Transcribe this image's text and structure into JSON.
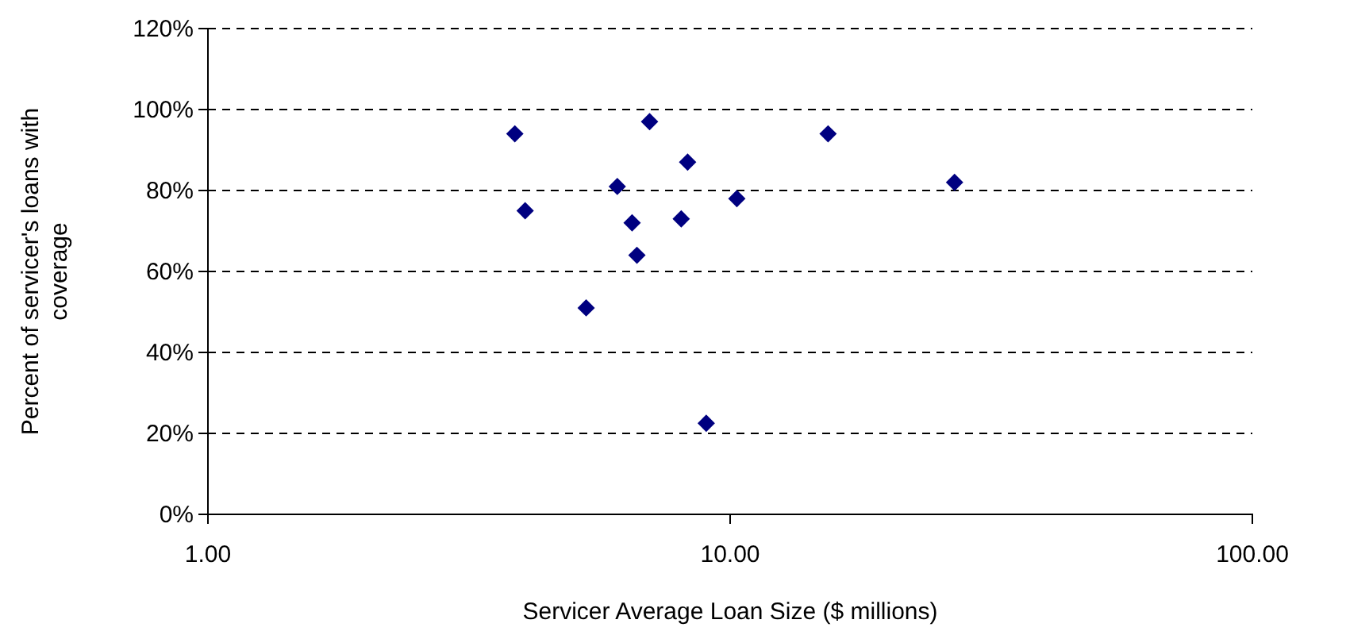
{
  "chart_data": {
    "type": "scatter",
    "xlabel": "Servicer Average Loan Size ($ millions)",
    "ylabel": "Percent of servicer's loans with coverage",
    "x": [
      3.87,
      4.05,
      7.01,
      8.29,
      6.08,
      6.49,
      6.63,
      5.3,
      8.06,
      10.3,
      9.0,
      15.4,
      26.9
    ],
    "series": [
      {
        "color": "#000080",
        "values": [
          94,
          75,
          97,
          87,
          81,
          72,
          64,
          51,
          73,
          78,
          22.5,
          94,
          82
        ]
      }
    ],
    "log": "x",
    "marker": "diamond",
    "grid": "y",
    "xlim": [
      1,
      100
    ],
    "xticks": [
      {
        "value": 1,
        "label": "1.00"
      },
      {
        "value": 10,
        "label": "10.00"
      },
      {
        "value": 100,
        "label": "100.00"
      }
    ],
    "ylim": [
      0,
      120
    ],
    "yticks": [
      {
        "value": 0,
        "label": "0%"
      },
      {
        "value": 20,
        "label": "20%"
      },
      {
        "value": 40,
        "label": "40%"
      },
      {
        "value": 60,
        "label": "60%"
      },
      {
        "value": 80,
        "label": "80%"
      },
      {
        "value": 100,
        "label": "100%"
      },
      {
        "value": 120,
        "label": "120%"
      }
    ]
  }
}
